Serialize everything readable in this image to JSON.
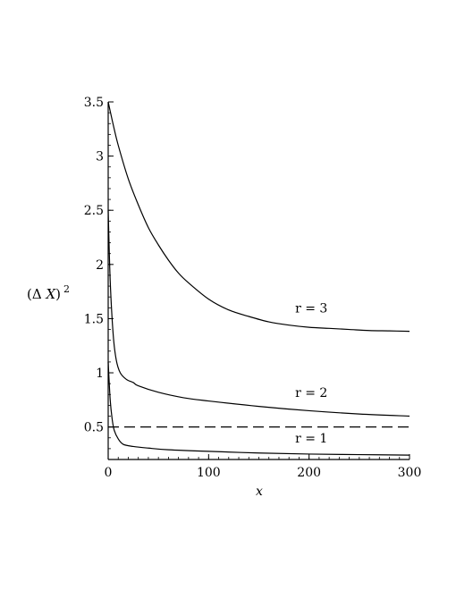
{
  "chart_data": {
    "type": "line",
    "xlabel": "x",
    "ylabel": {
      "open": "(Δ ",
      "var": "X",
      "close": ")",
      "exp": "2"
    },
    "xlim": [
      0,
      300
    ],
    "ylim": [
      0.2,
      3.5
    ],
    "x_ticks": [
      "0",
      "100",
      "200",
      "300"
    ],
    "y_ticks": [
      "0.5",
      "1",
      "1.5",
      "2",
      "2.5",
      "3",
      "3.5"
    ],
    "grid": false,
    "series": [
      {
        "name": "r = 3",
        "points": [
          [
            0,
            3.5
          ],
          [
            5,
            3.29
          ],
          [
            10,
            3.1
          ],
          [
            20,
            2.79
          ],
          [
            30,
            2.55
          ],
          [
            40,
            2.34
          ],
          [
            50,
            2.18
          ],
          [
            60,
            2.04
          ],
          [
            70,
            1.92
          ],
          [
            80,
            1.83
          ],
          [
            100,
            1.68
          ],
          [
            120,
            1.58
          ],
          [
            140,
            1.52
          ],
          [
            160,
            1.47
          ],
          [
            180,
            1.44
          ],
          [
            200,
            1.42
          ],
          [
            220,
            1.41
          ],
          [
            240,
            1.4
          ],
          [
            260,
            1.39
          ],
          [
            280,
            1.387
          ],
          [
            300,
            1.383
          ]
        ]
      },
      {
        "name": "r = 2",
        "points": [
          [
            0,
            2.5
          ],
          [
            2,
            1.85
          ],
          [
            5,
            1.35
          ],
          [
            8,
            1.12
          ],
          [
            12,
            1.0
          ],
          [
            18,
            0.94
          ],
          [
            25,
            0.91
          ],
          [
            30,
            0.88
          ],
          [
            50,
            0.82
          ],
          [
            75,
            0.77
          ],
          [
            100,
            0.74
          ],
          [
            150,
            0.69
          ],
          [
            200,
            0.65
          ],
          [
            250,
            0.62
          ],
          [
            300,
            0.6
          ]
        ]
      },
      {
        "name": "r = 1",
        "points": [
          [
            0,
            1.1
          ],
          [
            2,
            0.75
          ],
          [
            4,
            0.57
          ],
          [
            6,
            0.47
          ],
          [
            10,
            0.39
          ],
          [
            15,
            0.34
          ],
          [
            25,
            0.32
          ],
          [
            40,
            0.305
          ],
          [
            60,
            0.29
          ],
          [
            100,
            0.275
          ],
          [
            150,
            0.26
          ],
          [
            200,
            0.25
          ],
          [
            250,
            0.245
          ],
          [
            300,
            0.24
          ]
        ]
      },
      {
        "name": "",
        "style": "dashed",
        "points": [
          [
            0,
            0.5
          ],
          [
            300,
            0.5
          ]
        ]
      }
    ],
    "annotations": [
      {
        "text": "r = 3",
        "x": 180,
        "y": 1.6
      },
      {
        "text": "r = 2",
        "x": 180,
        "y": 0.82
      },
      {
        "text": "r = 1",
        "x": 180,
        "y": 0.4
      }
    ]
  }
}
